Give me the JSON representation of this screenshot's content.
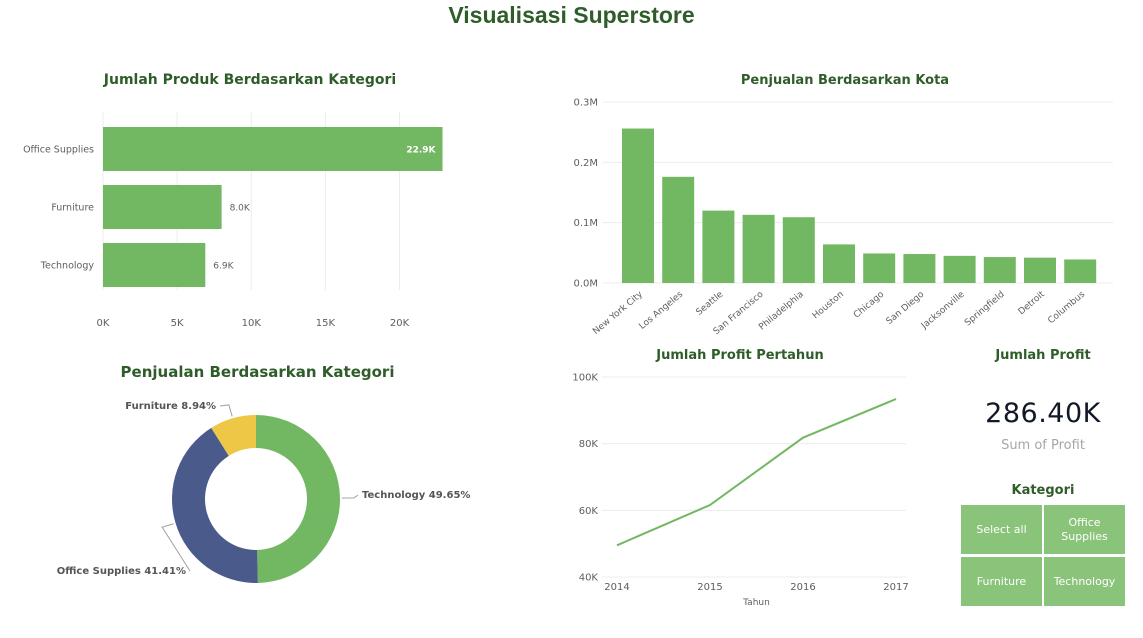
{
  "page": {
    "title": "Visualisasi Superstore"
  },
  "colors": {
    "bar": "#72b863",
    "grid": "#ececec",
    "title": "#2f5d2a",
    "donut_tech": "#72b863",
    "donut_office": "#4a5a8a",
    "donut_furniture": "#eec746"
  },
  "products_chart": {
    "title": "Jumlah Produk Berdasarkan Kategori",
    "chart_data": {
      "type": "bar",
      "orientation": "horizontal",
      "categories": [
        "Office Supplies",
        "Furniture",
        "Technology"
      ],
      "values": [
        22900,
        8000,
        6900
      ],
      "data_labels": [
        "22.9K",
        "8.0K",
        "6.9K"
      ],
      "xlim": [
        0,
        23000
      ],
      "x_ticks": [
        0,
        5000,
        10000,
        15000,
        20000
      ],
      "x_tick_labels": [
        "0K",
        "5K",
        "10K",
        "15K",
        "20K"
      ],
      "grid": true
    }
  },
  "city_chart": {
    "title": "Penjualan Berdasarkan Kota",
    "chart_data": {
      "type": "bar",
      "categories": [
        "New York City",
        "Los Angeles",
        "Seattle",
        "San Francisco",
        "Philadelphia",
        "Houston",
        "Chicago",
        "San Diego",
        "Jacksonville",
        "Springfield",
        "Detroit",
        "Columbus"
      ],
      "values": [
        256000,
        176000,
        120000,
        113000,
        109000,
        64000,
        49000,
        48000,
        45000,
        43000,
        42000,
        39000
      ],
      "ylim": [
        0,
        300000
      ],
      "y_ticks": [
        0,
        100000,
        200000,
        300000
      ],
      "y_tick_labels": [
        "0.0M",
        "0.1M",
        "0.2M",
        "0.3M"
      ],
      "grid": true
    }
  },
  "category_donut": {
    "title": "Penjualan Berdasarkan Kategori",
    "chart_data": {
      "type": "pie",
      "donut": true,
      "categories": [
        "Technology",
        "Office Supplies",
        "Furniture"
      ],
      "values": [
        49.65,
        41.41,
        8.94
      ],
      "labels": [
        "Technology 49.65%",
        "Office Supplies 41.41%",
        "Furniture 8.94%"
      ]
    }
  },
  "profit_chart": {
    "title": "Jumlah Profit Pertahun",
    "chart_data": {
      "type": "line",
      "x": [
        "2014",
        "2015",
        "2016",
        "2017"
      ],
      "values": [
        49500,
        61600,
        81800,
        93400
      ],
      "xlabel": "Tahun",
      "ylim": [
        40000,
        100000
      ],
      "y_ticks": [
        40000,
        60000,
        80000,
        100000
      ],
      "y_tick_labels": [
        "40K",
        "60K",
        "80K",
        "100K"
      ],
      "grid": true
    }
  },
  "profit_card": {
    "title": "Jumlah Profit",
    "value": "286.40K",
    "label": "Sum of Profit"
  },
  "slicer": {
    "title": "Kategori",
    "options": [
      "Select all",
      "Office Supplies",
      "Furniture",
      "Technology"
    ]
  }
}
